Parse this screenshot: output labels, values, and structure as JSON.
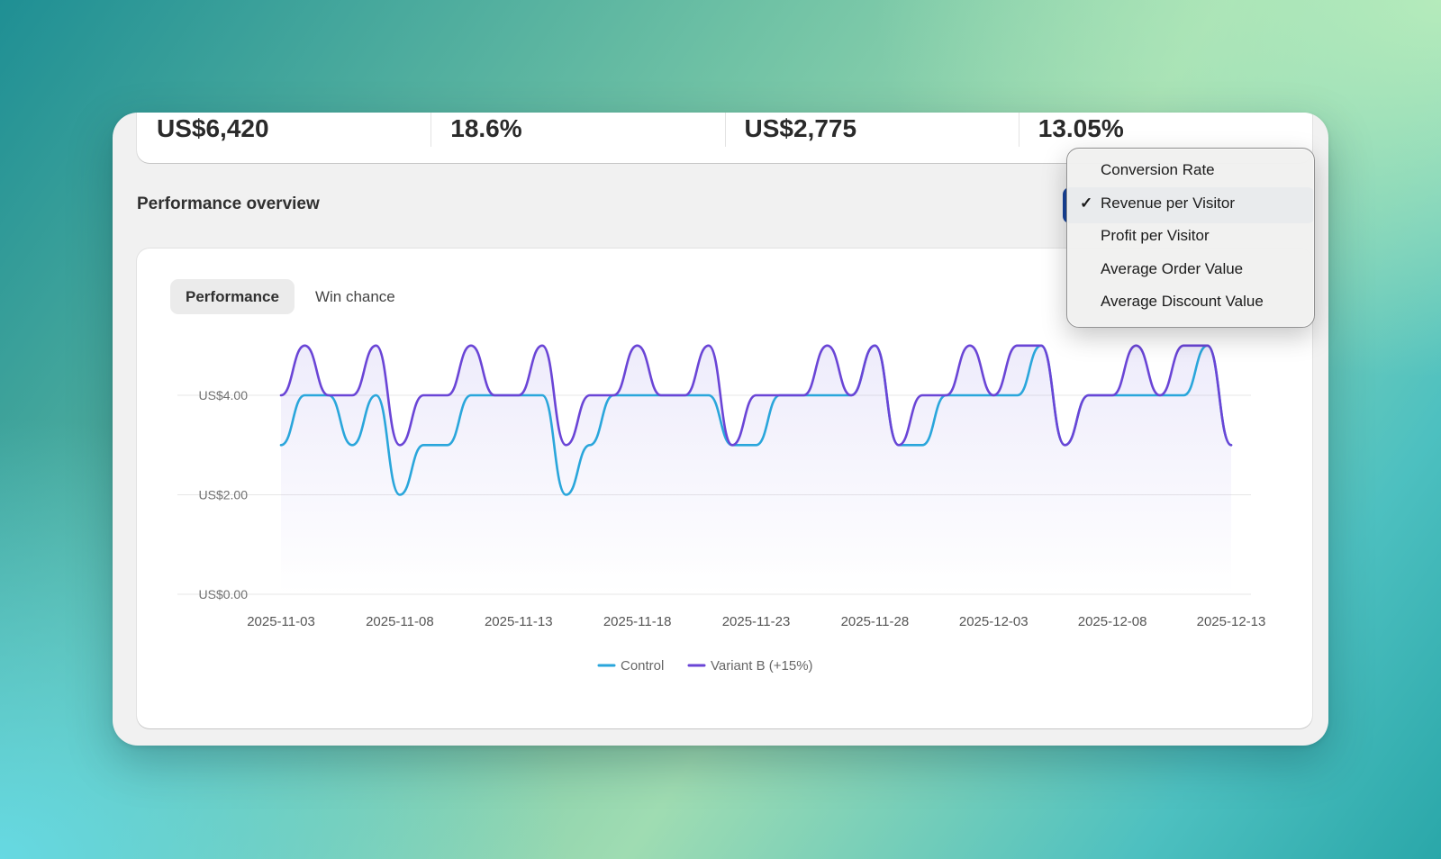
{
  "stats": [
    {
      "value": "US$6,420"
    },
    {
      "value": "18.6%"
    },
    {
      "value": "US$2,775"
    },
    {
      "value": "13.05%"
    }
  ],
  "section_title": "Performance overview",
  "tabs": [
    {
      "label": "Performance",
      "active": true
    },
    {
      "label": "Win chance",
      "active": false
    }
  ],
  "metric_menu": {
    "selected": "Revenue per Visitor",
    "check_glyph": "✓",
    "items": [
      {
        "label": "Conversion Rate"
      },
      {
        "label": "Revenue per Visitor"
      },
      {
        "label": "Profit per Visitor"
      },
      {
        "label": "Average Order Value"
      },
      {
        "label": "Average Discount Value"
      }
    ]
  },
  "colors": {
    "control": "#2aa6db",
    "variant": "#6a45d6",
    "accent_button": "#18439a"
  },
  "chart_data": {
    "type": "line",
    "ylim": [
      0,
      4
    ],
    "y_ticks": [
      {
        "value": 4,
        "label": "US$4.00"
      },
      {
        "value": 2,
        "label": "US$2.00"
      },
      {
        "value": 0,
        "label": "US$0.00"
      }
    ],
    "x_tick_labels": [
      "2025-11-03",
      "2025-11-08",
      "2025-11-13",
      "2025-11-18",
      "2025-11-23",
      "2025-11-28",
      "2025-12-03",
      "2025-12-08",
      "2025-12-13"
    ],
    "x": [
      "2025-11-03",
      "2025-11-04",
      "2025-11-05",
      "2025-11-06",
      "2025-11-07",
      "2025-11-08",
      "2025-11-09",
      "2025-11-10",
      "2025-11-11",
      "2025-11-12",
      "2025-11-13",
      "2025-11-14",
      "2025-11-15",
      "2025-11-16",
      "2025-11-17",
      "2025-11-18",
      "2025-11-19",
      "2025-11-20",
      "2025-11-21",
      "2025-11-22",
      "2025-11-23",
      "2025-11-24",
      "2025-11-25",
      "2025-11-26",
      "2025-11-27",
      "2025-11-28",
      "2025-11-29",
      "2025-11-30",
      "2025-12-01",
      "2025-12-02",
      "2025-12-03",
      "2025-12-04",
      "2025-12-05",
      "2025-12-06",
      "2025-12-07",
      "2025-12-08",
      "2025-12-09",
      "2025-12-10",
      "2025-12-11",
      "2025-12-12",
      "2025-12-13"
    ],
    "legend_position": "bottom-center",
    "grid": true,
    "series": [
      {
        "name": "Control",
        "color_key": "control",
        "values": [
          3,
          4,
          4,
          3,
          4,
          2,
          3,
          3,
          4,
          4,
          4,
          4,
          2,
          3,
          4,
          4,
          4,
          4,
          4,
          3,
          3,
          4,
          4,
          4,
          4,
          5,
          3,
          3,
          4,
          4,
          4,
          4,
          5,
          3,
          4,
          4,
          4,
          4,
          4,
          5,
          3
        ]
      },
      {
        "name": "Variant B (+15%)",
        "color_key": "variant",
        "values": [
          4,
          5,
          4,
          4,
          5,
          3,
          4,
          4,
          5,
          4,
          4,
          5,
          3,
          4,
          4,
          5,
          4,
          4,
          5,
          3,
          4,
          4,
          4,
          5,
          4,
          5,
          3,
          4,
          4,
          5,
          4,
          5,
          5,
          3,
          4,
          4,
          5,
          4,
          5,
          5,
          3
        ]
      }
    ]
  }
}
